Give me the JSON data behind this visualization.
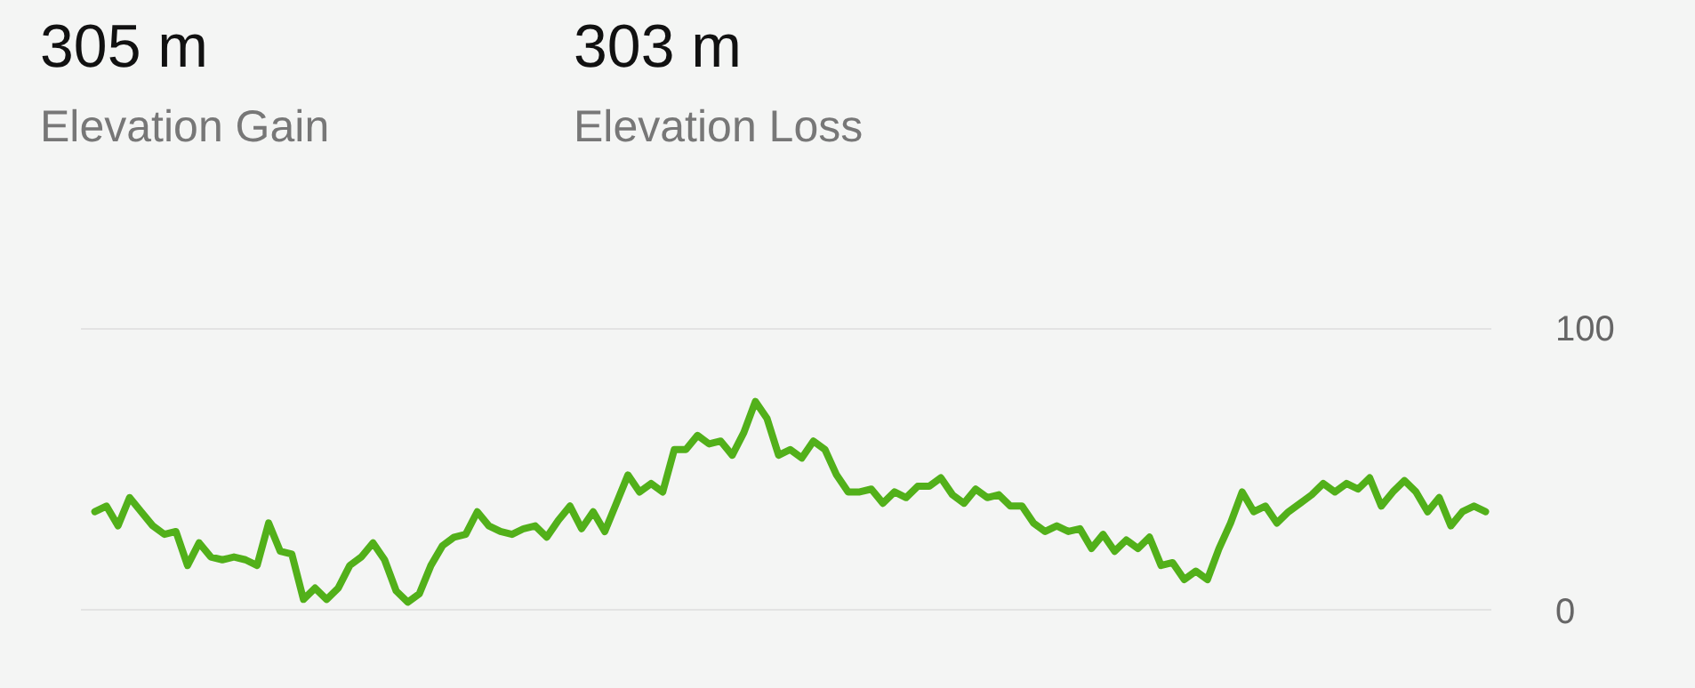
{
  "chart_data": {
    "type": "line",
    "annotations": [
      "305 m",
      "Elevation Gain",
      "303 m",
      "Elevation Loss"
    ],
    "categories": [
      null,
      null,
      null,
      null,
      null,
      null,
      null,
      null,
      null,
      null,
      null,
      null,
      null,
      null,
      null,
      null,
      null,
      null,
      null,
      null,
      null,
      null,
      null,
      null,
      null,
      null,
      null,
      null,
      null,
      null,
      null,
      null,
      null,
      null,
      null,
      null,
      null,
      null,
      null,
      null,
      null,
      null,
      null,
      null,
      null,
      null,
      null,
      null,
      null,
      null,
      null,
      null,
      null,
      null,
      null,
      null,
      null,
      null,
      null,
      null,
      null,
      null,
      null,
      null,
      null,
      null,
      null,
      null,
      null,
      null,
      null,
      null,
      null,
      null,
      null,
      null,
      null,
      null,
      null,
      null,
      null,
      null,
      null,
      null,
      null,
      null,
      null,
      null,
      null,
      null,
      null,
      null,
      null,
      null,
      null,
      null,
      null,
      null,
      null,
      null,
      null,
      null,
      null,
      null,
      null,
      null,
      null,
      null,
      null,
      null,
      null,
      null,
      null,
      null,
      null,
      null,
      null,
      null,
      null,
      null,
      null
    ],
    "series": [
      {
        "color": "#52b01a",
        "values": [
          35,
          37,
          30,
          40,
          35,
          30,
          27,
          28,
          16,
          24,
          19,
          18,
          19,
          18,
          16,
          31,
          21,
          20,
          4,
          8,
          4,
          8,
          16,
          19,
          24,
          18,
          7,
          3,
          6,
          16,
          23,
          26,
          27,
          35,
          30,
          28,
          27,
          29,
          30,
          26,
          32,
          37,
          29,
          35,
          28,
          38,
          48,
          42,
          45,
          42,
          57,
          57,
          62,
          59,
          60,
          55,
          63,
          74,
          68,
          55,
          57,
          54,
          60,
          57,
          48,
          42,
          42,
          43,
          38,
          42,
          40,
          44,
          44,
          47,
          41,
          38,
          43,
          40,
          41,
          37,
          37,
          31,
          28,
          30,
          28,
          29,
          22,
          27,
          21,
          25,
          22,
          26,
          16,
          17,
          11,
          14,
          11,
          22,
          31,
          42,
          35,
          37,
          31,
          35,
          38,
          41,
          45,
          42,
          45,
          43,
          47,
          37,
          42,
          46,
          42,
          35,
          40,
          30,
          35,
          37,
          35
        ]
      }
    ],
    "ylim": [
      0,
      100
    ],
    "yticks": [
      0,
      100
    ],
    "grid": "y",
    "tick_labels": "y",
    "line_style": "solid",
    "marker": "none"
  }
}
